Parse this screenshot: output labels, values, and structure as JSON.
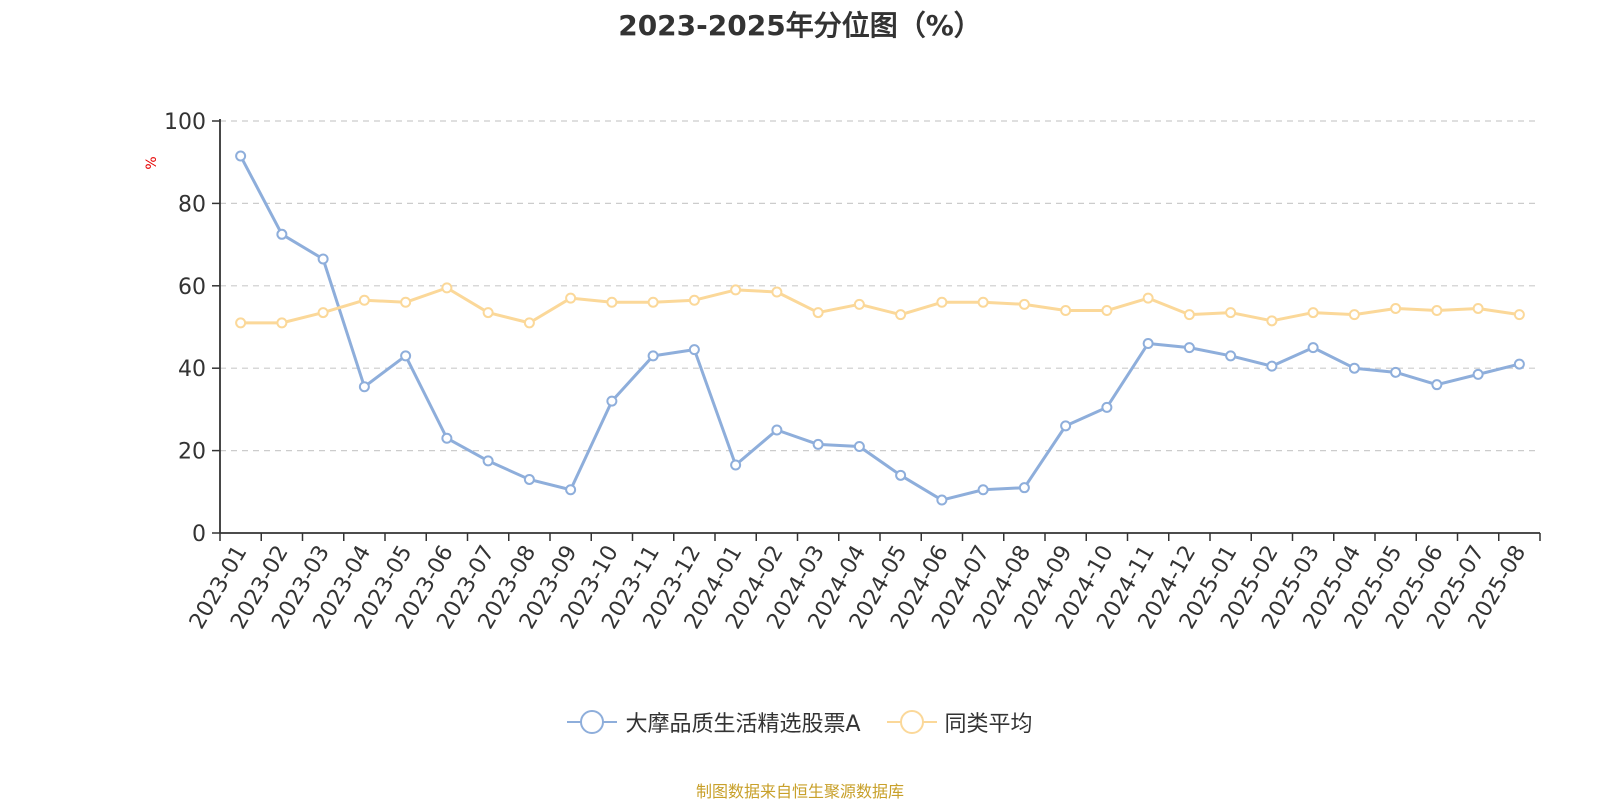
{
  "chart_data": {
    "type": "line",
    "title": "2023-2025年分位图（%）",
    "ylabel": "%",
    "xlabel": "",
    "ylim": [
      0,
      100
    ],
    "yticks": [
      0,
      20,
      40,
      60,
      80,
      100
    ],
    "grid": true,
    "legend_position": "bottom-center",
    "categories": [
      "2023-01",
      "2023-02",
      "2023-03",
      "2023-04",
      "2023-05",
      "2023-06",
      "2023-07",
      "2023-08",
      "2023-09",
      "2023-10",
      "2023-11",
      "2023-12",
      "2024-01",
      "2024-02",
      "2024-03",
      "2024-04",
      "2024-05",
      "2024-06",
      "2024-07",
      "2024-08",
      "2024-09",
      "2024-10",
      "2024-11",
      "2024-12",
      "2025-01",
      "2025-02",
      "2025-03",
      "2025-04",
      "2025-05",
      "2025-06",
      "2025-07",
      "2025-08"
    ],
    "series": [
      {
        "name": "大摩品质生活精选股票A",
        "color": "#8eaedb",
        "values": [
          91.5,
          72.5,
          66.5,
          35.5,
          43,
          23,
          17.5,
          13,
          10.5,
          32,
          43,
          44.5,
          16.5,
          25,
          21.5,
          21,
          14,
          8,
          10.5,
          11,
          26,
          30.5,
          46,
          45,
          43,
          40.5,
          45,
          40,
          39,
          36,
          38.5,
          41
        ]
      },
      {
        "name": "同类平均",
        "color": "#fbd899",
        "values": [
          51,
          51,
          53.5,
          56.5,
          56,
          59.5,
          53.5,
          51,
          57,
          56,
          56,
          56.5,
          59,
          58.5,
          53.5,
          55.5,
          53,
          56,
          56,
          55.5,
          54,
          54,
          57,
          53,
          53.5,
          51.5,
          53.5,
          53,
          54.5,
          54,
          54.5,
          53
        ]
      }
    ]
  },
  "source_text": "制图数据来自恒生聚源数据库"
}
